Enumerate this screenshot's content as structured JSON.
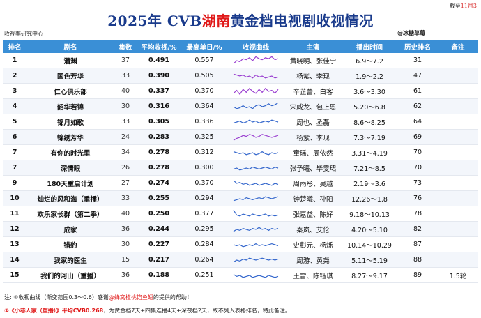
{
  "header": {
    "title_prefix": "2025年 CVB",
    "title_highlight": "湖南",
    "title_suffix": "黄金档电视剧收视情况",
    "cutoff_label": "截至",
    "cutoff_date": "11月3",
    "source_left": "收视率研究中心",
    "source_right": "@冰糖草莓"
  },
  "columns": [
    "排名",
    "剧名",
    "集数",
    "平均收视/%",
    "最高单日/%",
    "收视曲线",
    "主演",
    "播出时间",
    "历史排名",
    "备注"
  ],
  "colors": {
    "header_bg": "#3a8fd6",
    "title": "#1a3b8c",
    "accent_red": "#e01818",
    "curve_blue": "#3366cc",
    "curve_purple": "#9a3fd0"
  },
  "rows": [
    {
      "rank": "1",
      "name": "潜渊",
      "episodes": "37",
      "avg": "0.491",
      "peak": "0.557",
      "actors": "黄晓明、张佳宁",
      "period": "6.9～7.2",
      "history": "31",
      "note": "",
      "curve_color": "#9a3fd0",
      "curve": [
        0.2,
        0.5,
        0.4,
        0.7,
        0.6,
        0.8,
        0.5,
        0.9,
        0.7,
        0.6,
        0.8,
        0.7,
        0.9,
        0.6,
        0.7
      ]
    },
    {
      "rank": "2",
      "name": "国色芳华",
      "episodes": "33",
      "avg": "0.390",
      "peak": "0.505",
      "actors": "杨紫、李现",
      "period": "1.9～2.2",
      "history": "47",
      "note": "",
      "curve_color": "#9a3fd0",
      "curve": [
        0.7,
        0.6,
        0.5,
        0.6,
        0.4,
        0.5,
        0.3,
        0.6,
        0.4,
        0.5,
        0.3,
        0.4,
        0.5,
        0.3,
        0.4
      ]
    },
    {
      "rank": "3",
      "name": "仁心俱乐部",
      "episodes": "40",
      "avg": "0.337",
      "peak": "0.370",
      "actors": "辛芷蕾、白客",
      "period": "3.6～3.30",
      "history": "61",
      "note": "",
      "curve_color": "#9a3fd0",
      "curve": [
        0.3,
        0.6,
        0.2,
        0.7,
        0.4,
        0.8,
        0.5,
        0.3,
        0.7,
        0.4,
        0.8,
        0.5,
        0.6,
        0.3,
        0.7
      ]
    },
    {
      "rank": "4",
      "name": "韶华若锦",
      "episodes": "30",
      "avg": "0.316",
      "peak": "0.364",
      "actors": "宋威龙、包上恩",
      "period": "5.20～6.8",
      "history": "62",
      "note": "",
      "curve_color": "#3366cc",
      "curve": [
        0.5,
        0.3,
        0.4,
        0.6,
        0.4,
        0.5,
        0.3,
        0.6,
        0.7,
        0.5,
        0.6,
        0.8,
        0.6,
        0.7,
        0.9
      ]
    },
    {
      "rank": "5",
      "name": "锦月如歌",
      "episodes": "33",
      "avg": "0.305",
      "peak": "0.336",
      "actors": "周也、丞磊",
      "period": "8.6～8.25",
      "history": "64",
      "note": "",
      "curve_color": "#3366cc",
      "curve": [
        0.4,
        0.5,
        0.6,
        0.4,
        0.5,
        0.7,
        0.5,
        0.6,
        0.4,
        0.5,
        0.6,
        0.5,
        0.7,
        0.6,
        0.5
      ]
    },
    {
      "rank": "6",
      "name": "锦绣芳华",
      "episodes": "24",
      "avg": "0.283",
      "peak": "0.325",
      "actors": "杨紫、李现",
      "period": "7.3～7.19",
      "history": "69",
      "note": "",
      "curve_color": "#9a3fd0",
      "curve": [
        0.2,
        0.4,
        0.5,
        0.7,
        0.6,
        0.8,
        0.7,
        0.5,
        0.6,
        0.8,
        0.7,
        0.6,
        0.5,
        0.6,
        0.7
      ]
    },
    {
      "rank": "7",
      "name": "有你的时光里",
      "episodes": "34",
      "avg": "0.278",
      "peak": "0.312",
      "actors": "童瑶、周依然",
      "period": "3.31～4.19",
      "history": "70",
      "note": "",
      "curve_color": "#3366cc",
      "curve": [
        0.6,
        0.5,
        0.4,
        0.5,
        0.3,
        0.4,
        0.5,
        0.3,
        0.4,
        0.6,
        0.4,
        0.3,
        0.5,
        0.4,
        0.5
      ]
    },
    {
      "rank": "7",
      "name": "深情眼",
      "episodes": "26",
      "avg": "0.278",
      "peak": "0.300",
      "actors": "张予曦、毕雯珺",
      "period": "7.21～8.5",
      "history": "70",
      "note": "",
      "curve_color": "#3366cc",
      "curve": [
        0.4,
        0.5,
        0.3,
        0.4,
        0.5,
        0.4,
        0.6,
        0.5,
        0.4,
        0.5,
        0.6,
        0.5,
        0.4,
        0.6,
        0.5
      ]
    },
    {
      "rank": "9",
      "name": "180天重启计划",
      "episodes": "27",
      "avg": "0.274",
      "peak": "0.370",
      "actors": "周雨彤、吴越",
      "period": "2.19～3.6",
      "history": "73",
      "note": "",
      "curve_color": "#3366cc",
      "curve": [
        0.8,
        0.5,
        0.6,
        0.4,
        0.5,
        0.3,
        0.4,
        0.5,
        0.3,
        0.4,
        0.5,
        0.4,
        0.3,
        0.5,
        0.4
      ]
    },
    {
      "rank": "10",
      "name": "灿烂的风和海（重播）",
      "episodes": "33",
      "avg": "0.255",
      "peak": "0.294",
      "actors": "钟楚曦、孙阳",
      "period": "12.26～1.8",
      "history": "76",
      "note": "",
      "curve_color": "#3366cc",
      "curve": [
        0.3,
        0.4,
        0.5,
        0.4,
        0.6,
        0.5,
        0.4,
        0.5,
        0.6,
        0.5,
        0.7,
        0.6,
        0.5,
        0.6,
        0.7
      ]
    },
    {
      "rank": "11",
      "name": "欢乐家长群（第二季）",
      "episodes": "40",
      "avg": "0.250",
      "peak": "0.377",
      "actors": "张嘉益、陈好",
      "period": "9.18～10.13",
      "history": "78",
      "note": "",
      "curve_color": "#3366cc",
      "curve": [
        0.9,
        0.4,
        0.3,
        0.5,
        0.4,
        0.3,
        0.5,
        0.4,
        0.3,
        0.4,
        0.5,
        0.3,
        0.4,
        0.3,
        0.4
      ]
    },
    {
      "rank": "12",
      "name": "成家",
      "episodes": "36",
      "avg": "0.244",
      "peak": "0.295",
      "actors": "秦岚、艾伦",
      "period": "4.20～5.10",
      "history": "82",
      "note": "",
      "curve_color": "#3366cc",
      "curve": [
        0.3,
        0.5,
        0.4,
        0.6,
        0.5,
        0.4,
        0.6,
        0.5,
        0.7,
        0.5,
        0.6,
        0.4,
        0.6,
        0.5,
        0.6
      ]
    },
    {
      "rank": "13",
      "name": "猎豹",
      "episodes": "30",
      "avg": "0.227",
      "peak": "0.284",
      "actors": "史彭元、杨烁",
      "period": "10.14～10.29",
      "history": "87",
      "note": "",
      "curve_color": "#3366cc",
      "curve": [
        0.5,
        0.4,
        0.5,
        0.3,
        0.4,
        0.5,
        0.4,
        0.6,
        0.4,
        0.5,
        0.4,
        0.5,
        0.6,
        0.5,
        0.4
      ]
    },
    {
      "rank": "14",
      "name": "我家的医生",
      "episodes": "15",
      "avg": "0.217",
      "peak": "0.264",
      "actors": "周游、黄尧",
      "period": "5.11～5.19",
      "history": "88",
      "note": "",
      "curve_color": "#3366cc",
      "curve": [
        0.3,
        0.5,
        0.4,
        0.6,
        0.5,
        0.7,
        0.6,
        0.5,
        0.6,
        0.7,
        0.6,
        0.5,
        0.6,
        0.5,
        0.6
      ]
    },
    {
      "rank": "15",
      "name": "我们的河山（重播）",
      "episodes": "36",
      "avg": "0.188",
      "peak": "0.251",
      "actors": "王雷、陈钰琪",
      "period": "8.27～9.17",
      "history": "89",
      "note": "1.5轮",
      "curve_color": "#3366cc",
      "curve": [
        0.6,
        0.4,
        0.5,
        0.3,
        0.4,
        0.5,
        0.3,
        0.4,
        0.5,
        0.4,
        0.3,
        0.5,
        0.4,
        0.3,
        0.4
      ]
    }
  ],
  "footnotes": {
    "note_label": "注:",
    "n1_a": "①收视曲线（渐变范围0.3～0.6）感谢",
    "n1_hl": "@蜂窝植桃馅鱼翅",
    "n1_b": "的提供的帮助！",
    "n2_a": "②《小巷人家（重播）》平均CVB0.268",
    "n2_b": "，为黄金档7天+四集连播4天+深夜档2天，故不列入表格排名，特此备注。"
  }
}
